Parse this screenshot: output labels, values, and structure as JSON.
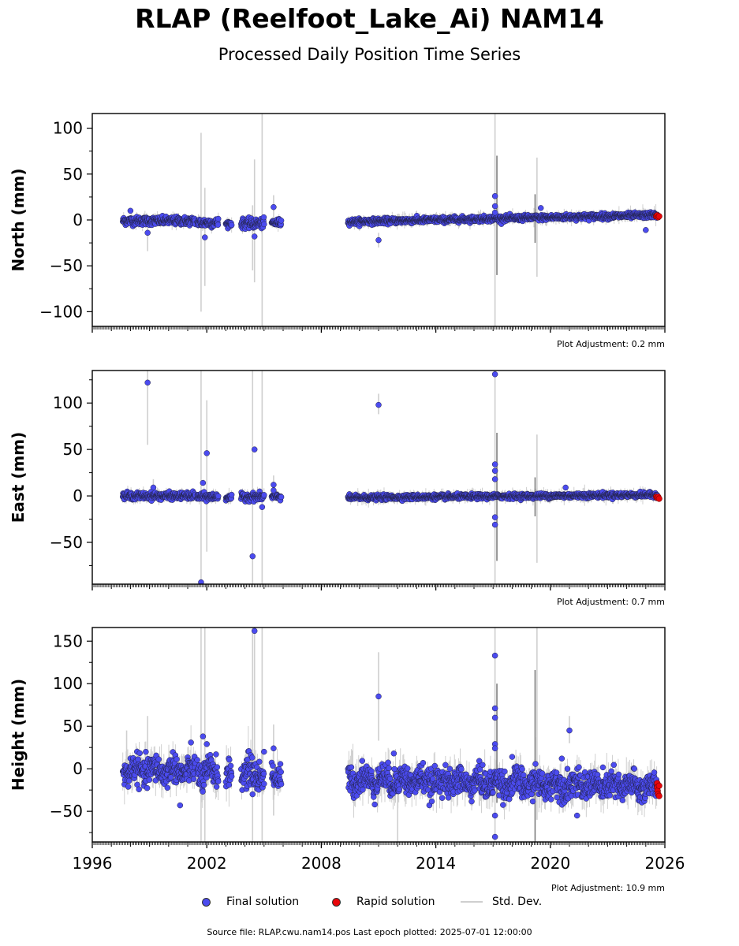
{
  "title": "RLAP (Reelfoot_Lake_Ai) NAM14",
  "subtitle": "Processed Daily Position Time Series",
  "source_note": "Source file: RLAP.cwu.nam14.pos  Last epoch plotted: 2025-07-01 12:00:00",
  "legend": [
    {
      "label": "Final solution",
      "kind": "marker",
      "color": "#4b4bef"
    },
    {
      "label": "Rapid solution",
      "kind": "marker",
      "color": "#e8060a"
    },
    {
      "label": "Std. Dev.",
      "kind": "line",
      "color": "#cfcfcf"
    }
  ],
  "colors": {
    "final": "#4b4bef",
    "rapid": "#e8060a",
    "stddev": "#cfcfcf",
    "edge": "#222244"
  },
  "chart_data": [
    {
      "type": "scatter",
      "ylabel": "North (mm)",
      "ylim": [
        -116,
        116
      ],
      "yticks": [
        -100,
        -50,
        0,
        50,
        100
      ],
      "xlim": [
        1996,
        2026
      ],
      "adjustment": "Plot Adjustment: 0.2 mm",
      "segments": [
        {
          "start": 1997.6,
          "end": 2001.4,
          "level": -1,
          "noise": 2.2
        },
        {
          "start": 2001.5,
          "end": 2002.6,
          "level": -3,
          "noise": 2.5
        },
        {
          "start": 2003.0,
          "end": 2003.3,
          "level": -4,
          "noise": 1.5
        },
        {
          "start": 2003.8,
          "end": 2005.0,
          "level": -4,
          "noise": 2.5
        },
        {
          "start": 2005.4,
          "end": 2005.9,
          "level": -3,
          "noise": 2.0
        },
        {
          "start": 2009.4,
          "end": 2025.6,
          "level": -2,
          "trend": 0.45,
          "noise": 1.5
        }
      ],
      "outliers": [
        [
          1998.0,
          10
        ],
        [
          1998.9,
          -14
        ],
        [
          2001.9,
          -19
        ],
        [
          2004.5,
          -18
        ],
        [
          2005.5,
          14
        ],
        [
          2011.0,
          -22
        ],
        [
          2017.1,
          26
        ],
        [
          2017.1,
          15
        ],
        [
          2017.1,
          8
        ],
        [
          2019.5,
          13
        ],
        [
          2025.0,
          -11
        ]
      ],
      "stddev_bars": [
        [
          1998.9,
          -34,
          5
        ],
        [
          2001.7,
          -100,
          95
        ],
        [
          2001.9,
          -72,
          35
        ],
        [
          2004.5,
          -68,
          66
        ],
        [
          2004.4,
          -55,
          16
        ],
        [
          2004.9,
          -116,
          116
        ],
        [
          2005.5,
          0,
          27
        ],
        [
          2011.0,
          -30,
          -14
        ],
        [
          2017.1,
          -116,
          116
        ],
        [
          2017.2,
          -60,
          70
        ],
        [
          2019.3,
          -62,
          68
        ],
        [
          2019.2,
          -25,
          28
        ]
      ],
      "rapid": [
        [
          2025.55,
          4
        ],
        [
          2025.6,
          5
        ],
        [
          2025.65,
          3
        ],
        [
          2025.7,
          4
        ]
      ]
    },
    {
      "type": "scatter",
      "ylabel": "East (mm)",
      "ylim": [
        -95,
        135
      ],
      "yticks": [
        -50,
        0,
        50,
        100
      ],
      "xlim": [
        1996,
        2026
      ],
      "adjustment": "Plot Adjustment: 0.7 mm",
      "segments": [
        {
          "start": 1997.6,
          "end": 2001.4,
          "level": 0,
          "noise": 1.8
        },
        {
          "start": 2001.5,
          "end": 2002.6,
          "level": -1,
          "noise": 2.0
        },
        {
          "start": 2003.0,
          "end": 2003.3,
          "level": -2,
          "noise": 1.2
        },
        {
          "start": 2003.8,
          "end": 2005.0,
          "level": -1,
          "noise": 2.0
        },
        {
          "start": 2005.4,
          "end": 2005.9,
          "level": -1,
          "noise": 1.8
        },
        {
          "start": 2009.4,
          "end": 2025.6,
          "level": -2,
          "trend": 0.2,
          "noise": 1.3
        }
      ],
      "outliers": [
        [
          1998.9,
          122
        ],
        [
          1999.2,
          9
        ],
        [
          2001.8,
          14
        ],
        [
          2002.0,
          46
        ],
        [
          2001.7,
          -93
        ],
        [
          2004.5,
          50
        ],
        [
          2004.4,
          -65
        ],
        [
          2004.9,
          -12
        ],
        [
          2005.5,
          12
        ],
        [
          2005.5,
          6
        ],
        [
          2011.0,
          98
        ],
        [
          2017.1,
          131
        ],
        [
          2017.1,
          34
        ],
        [
          2017.1,
          27
        ],
        [
          2017.1,
          18
        ],
        [
          2017.1,
          -23
        ],
        [
          2017.1,
          -31
        ],
        [
          2020.8,
          9
        ]
      ],
      "stddev_bars": [
        [
          1998.9,
          55,
          135
        ],
        [
          1999.2,
          0,
          18
        ],
        [
          2001.7,
          -95,
          135
        ],
        [
          2002.0,
          -60,
          103
        ],
        [
          2004.4,
          -95,
          135
        ],
        [
          2004.9,
          -95,
          135
        ],
        [
          2005.5,
          -5,
          22
        ],
        [
          2011.0,
          88,
          110
        ],
        [
          2017.1,
          -95,
          135
        ],
        [
          2017.2,
          -70,
          68
        ],
        [
          2019.3,
          -72,
          66
        ],
        [
          2019.2,
          -22,
          20
        ]
      ],
      "rapid": [
        [
          2025.55,
          -1
        ],
        [
          2025.6,
          -2
        ],
        [
          2025.65,
          -1
        ],
        [
          2025.7,
          -3
        ]
      ]
    },
    {
      "type": "scatter",
      "ylabel": "Height (mm)",
      "ylim": [
        -86,
        166
      ],
      "yticks": [
        -50,
        0,
        50,
        100,
        150
      ],
      "xlim": [
        1996,
        2026
      ],
      "xticks": [
        1996,
        2002,
        2008,
        2014,
        2020,
        2026
      ],
      "adjustment": "Plot Adjustment: 10.9 mm",
      "segments": [
        {
          "start": 1997.6,
          "end": 2001.4,
          "level": -2,
          "noise": 8
        },
        {
          "start": 2001.5,
          "end": 2002.6,
          "level": -5,
          "noise": 9
        },
        {
          "start": 2003.0,
          "end": 2003.3,
          "level": -8,
          "noise": 7
        },
        {
          "start": 2003.8,
          "end": 2005.0,
          "level": -6,
          "noise": 9
        },
        {
          "start": 2005.4,
          "end": 2005.9,
          "level": -8,
          "noise": 8
        },
        {
          "start": 2009.4,
          "end": 2025.6,
          "level": -12,
          "trend": -0.6,
          "noise": 8
        }
      ],
      "outliers": [
        [
          2000.6,
          -43
        ],
        [
          2001.8,
          38
        ],
        [
          2002.0,
          29
        ],
        [
          2004.5,
          162
        ],
        [
          2004.4,
          -30
        ],
        [
          2005.0,
          20
        ],
        [
          2005.5,
          24
        ],
        [
          2011.0,
          85
        ],
        [
          2011.8,
          18
        ],
        [
          2017.1,
          133
        ],
        [
          2017.1,
          71
        ],
        [
          2017.1,
          60
        ],
        [
          2017.1,
          29
        ],
        [
          2017.1,
          24
        ],
        [
          2017.1,
          -55
        ],
        [
          2017.1,
          -80
        ],
        [
          2018.0,
          14
        ],
        [
          2020.6,
          12
        ],
        [
          2021.0,
          45
        ],
        [
          2021.4,
          -55
        ]
      ],
      "stddev_bars": [
        [
          1997.8,
          10,
          45
        ],
        [
          1998.9,
          5,
          62
        ],
        [
          2001.7,
          -86,
          166
        ],
        [
          2001.9,
          -86,
          166
        ],
        [
          2004.4,
          -86,
          166
        ],
        [
          2004.5,
          -30,
          166
        ],
        [
          2004.9,
          -86,
          166
        ],
        [
          2005.5,
          -55,
          52
        ],
        [
          2011.0,
          33,
          137
        ],
        [
          2012.0,
          -86,
          -10
        ],
        [
          2017.1,
          -86,
          166
        ],
        [
          2017.2,
          -40,
          100
        ],
        [
          2019.2,
          -86,
          116
        ],
        [
          2019.3,
          -60,
          166
        ],
        [
          2021.0,
          30,
          62
        ]
      ],
      "rapid": [
        [
          2025.6,
          -17
        ],
        [
          2025.6,
          -22
        ],
        [
          2025.62,
          -26
        ],
        [
          2025.65,
          -30
        ],
        [
          2025.7,
          -32
        ],
        [
          2025.7,
          -20
        ]
      ]
    }
  ]
}
